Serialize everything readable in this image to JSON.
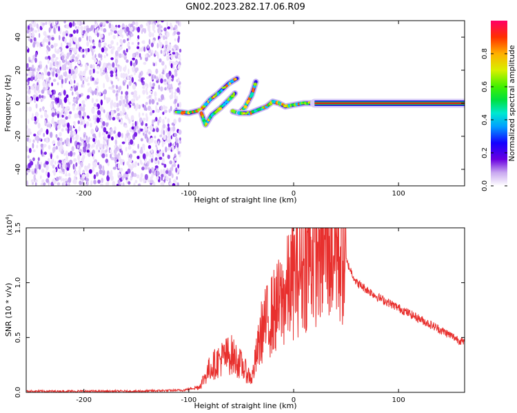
{
  "figure": {
    "title": "GN02.2023.282.17.06.R09"
  },
  "chart_data": [
    {
      "type": "heatmap",
      "xlabel": "Height of straight line (km)",
      "ylabel": "Frequency (Hz)",
      "xlim": [
        -255,
        163
      ],
      "ylim": [
        -50,
        50
      ],
      "xticks": [
        -200,
        -100,
        0,
        100
      ],
      "xtick_labels": [
        "-200",
        "-100",
        "0",
        "100"
      ],
      "yticks": [
        -40,
        -20,
        0,
        20,
        40
      ],
      "ytick_labels": [
        "-40",
        "-20",
        "0",
        "20",
        "40"
      ],
      "noise_region_x": [
        -255,
        -108
      ],
      "signal_features": [
        {
          "name": "trace-1",
          "points": [
            [
              -112,
              -5
            ],
            [
              -100,
              -6
            ],
            [
              -88,
              -4
            ],
            [
              -80,
              2
            ],
            [
              -72,
              6
            ],
            [
              -62,
              12
            ],
            [
              -54,
              15
            ]
          ]
        },
        {
          "name": "trace-2",
          "points": [
            [
              -88,
              -6
            ],
            [
              -84,
              -13
            ],
            [
              -78,
              -7
            ],
            [
              -70,
              -3
            ],
            [
              -62,
              2
            ],
            [
              -56,
              6
            ]
          ]
        },
        {
          "name": "trace-3",
          "points": [
            [
              -58,
              -5
            ],
            [
              -52,
              -6
            ],
            [
              -46,
              -2
            ],
            [
              -40,
              5
            ],
            [
              -36,
              13
            ]
          ]
        },
        {
          "name": "trace-4",
          "points": [
            [
              -52,
              -6
            ],
            [
              -42,
              -6
            ],
            [
              -34,
              -4
            ],
            [
              -26,
              -2
            ],
            [
              -20,
              1
            ],
            [
              -14,
              0
            ],
            [
              -8,
              -2
            ],
            [
              0,
              -1
            ],
            [
              10,
              0
            ],
            [
              20,
              0
            ]
          ]
        },
        {
          "name": "carrier",
          "points": [
            [
              20,
              0
            ],
            [
              163,
              0
            ]
          ]
        }
      ],
      "grid": false,
      "colormap": "rainbow"
    },
    {
      "type": "line",
      "xlabel": "Height of straight line (km)",
      "ylabel": "SNR (10 * v/v)",
      "y_multiplier_label": "(x10",
      "y_multiplier_exp": "4",
      "y_multiplier_close": ")",
      "xlim": [
        -255,
        163
      ],
      "ylim": [
        0,
        1.5
      ],
      "xticks": [
        -200,
        -100,
        0,
        100
      ],
      "xtick_labels": [
        "-200",
        "-100",
        "0",
        "100"
      ],
      "yticks": [
        0,
        0.5,
        1.0,
        1.5
      ],
      "ytick_labels": [
        "0.0",
        "0.5",
        "1.0",
        "1.5"
      ],
      "line_color": "#e8302e",
      "x": [
        -255,
        -200,
        -150,
        -105,
        -90,
        -80,
        -70,
        -60,
        -50,
        -40,
        -30,
        -20,
        -10,
        0,
        10,
        20,
        30,
        40,
        50,
        60,
        80,
        100,
        120,
        140,
        163
      ],
      "y": [
        0.01,
        0.01,
        0.01,
        0.02,
        0.05,
        0.22,
        0.3,
        0.35,
        0.25,
        0.12,
        0.58,
        0.72,
        0.85,
        1.05,
        1.18,
        1.3,
        1.35,
        1.32,
        1.2,
        1.0,
        0.87,
        0.77,
        0.67,
        0.57,
        0.45
      ],
      "grid": false
    }
  ],
  "colorbar": {
    "label": "Normalized spectral amplitude",
    "min": 0,
    "max": 1,
    "ticks": [
      0.0,
      0.2,
      0.4,
      0.6,
      0.8
    ],
    "tick_labels": [
      "0.0",
      "0.2",
      "0.4",
      "0.6",
      "0.8"
    ]
  }
}
